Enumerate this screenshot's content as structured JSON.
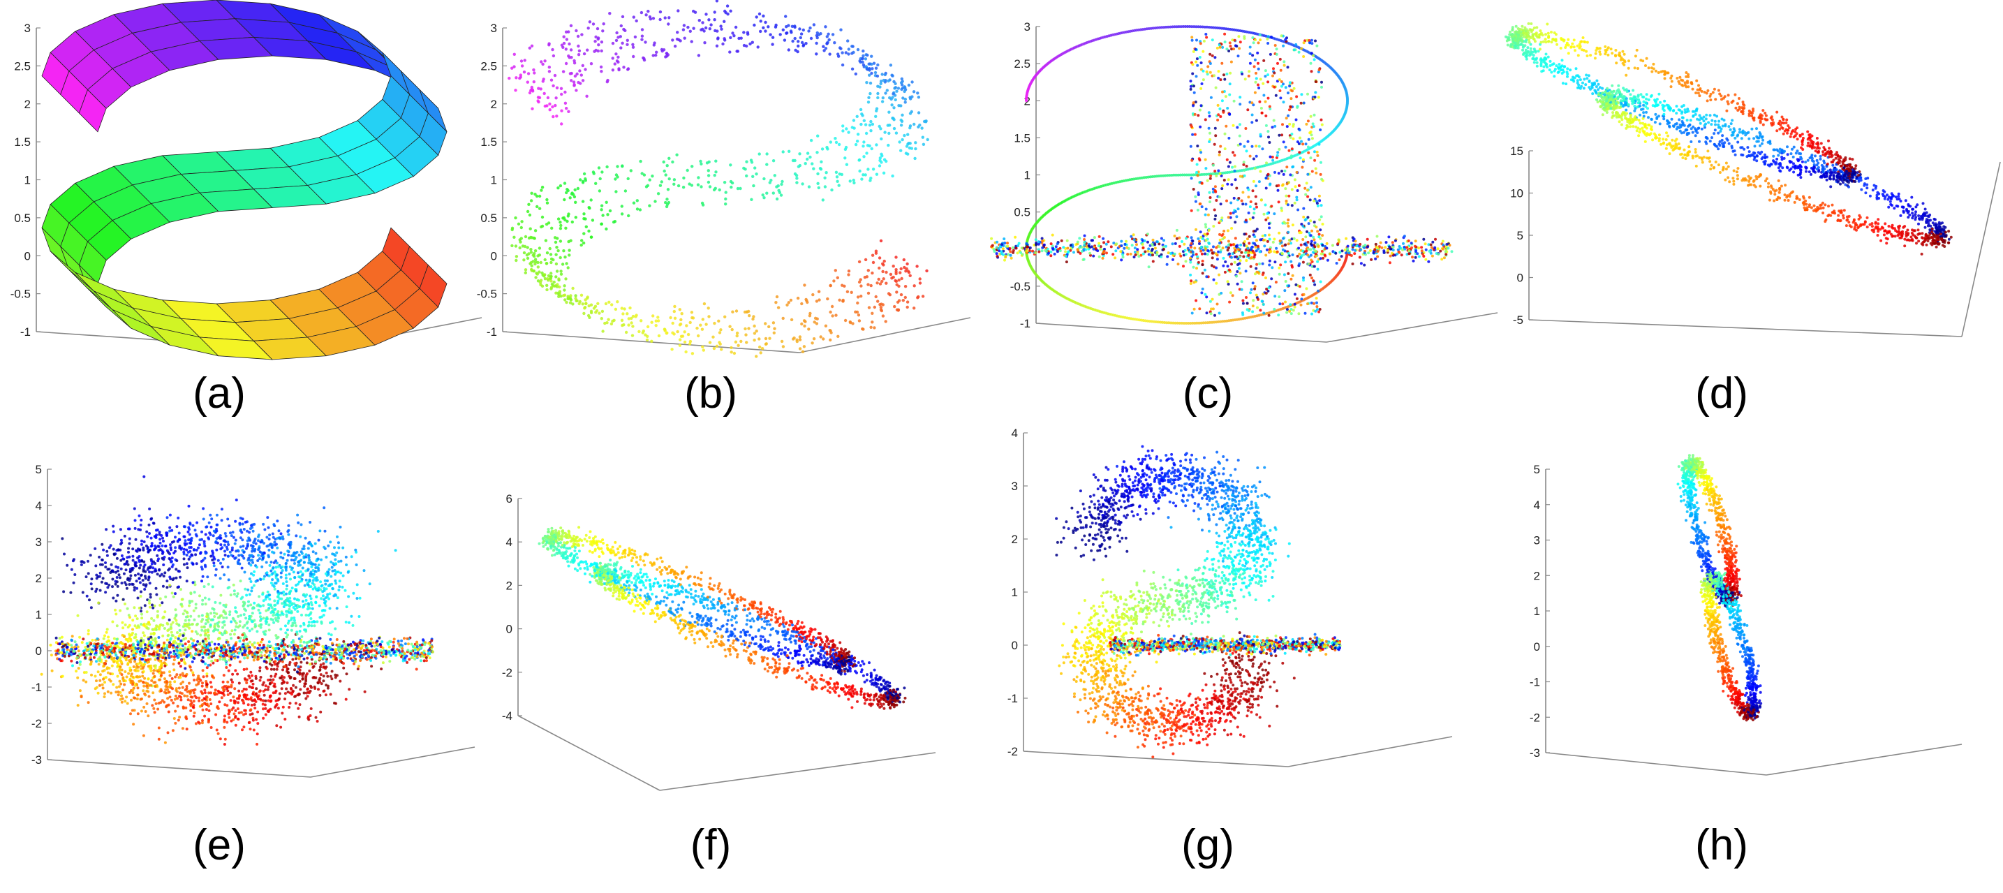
{
  "figure": {
    "panels": [
      {
        "id": "a",
        "caption": "(a)",
        "yticks": [
          "3",
          "2.5",
          "2",
          "1.5",
          "1",
          "0.5",
          "0",
          "-0.5",
          "-1"
        ]
      },
      {
        "id": "b",
        "caption": "(b)",
        "yticks": [
          "3",
          "2.5",
          "2",
          "1.5",
          "1",
          "0.5",
          "0",
          "-0.5",
          "-1"
        ]
      },
      {
        "id": "c",
        "caption": "(c)",
        "yticks": [
          "3",
          "2.5",
          "2",
          "1.5",
          "1",
          "0.5",
          "0",
          "-0.5",
          "-1"
        ]
      },
      {
        "id": "d",
        "caption": "(d)",
        "yticks": [
          "15",
          "10",
          "5",
          "0",
          "-5"
        ]
      },
      {
        "id": "e",
        "caption": "(e)",
        "yticks": [
          "5",
          "4",
          "3",
          "2",
          "1",
          "0",
          "-1",
          "-2",
          "-3"
        ]
      },
      {
        "id": "f",
        "caption": "(f)",
        "yticks": [
          "6",
          "4",
          "2",
          "0",
          "-2",
          "-4"
        ]
      },
      {
        "id": "g",
        "caption": "(g)",
        "yticks": [
          "4",
          "3",
          "2",
          "1",
          "0",
          "-1",
          "-2"
        ]
      },
      {
        "id": "h",
        "caption": "(h)",
        "yticks": [
          "5",
          "4",
          "3",
          "2",
          "1",
          "0",
          "-1",
          "-2",
          "-3"
        ]
      }
    ]
  },
  "chart_data": [
    {
      "type": "surface",
      "panel": "a",
      "ylim": [
        -1,
        3
      ],
      "grid": false,
      "colormap": "jet"
    },
    {
      "type": "scatter",
      "panel": "b",
      "ylim": [
        -1,
        3
      ],
      "grid": false,
      "colormap": "jet"
    },
    {
      "type": "scatter",
      "panel": "c",
      "ylim": [
        -1,
        3
      ],
      "grid": false,
      "colormap": "jet"
    },
    {
      "type": "scatter",
      "panel": "d",
      "ylim": [
        -5,
        15
      ],
      "grid": false,
      "colormap": "jet"
    },
    {
      "type": "scatter",
      "panel": "e",
      "ylim": [
        -3,
        5
      ],
      "grid": false,
      "colormap": "jet"
    },
    {
      "type": "scatter",
      "panel": "f",
      "ylim": [
        -4,
        6
      ],
      "grid": false,
      "colormap": "jet"
    },
    {
      "type": "scatter",
      "panel": "g",
      "ylim": [
        -2,
        4
      ],
      "grid": false,
      "colormap": "jet"
    },
    {
      "type": "scatter",
      "panel": "h",
      "ylim": [
        -3,
        5
      ],
      "grid": false,
      "colormap": "jet"
    }
  ]
}
